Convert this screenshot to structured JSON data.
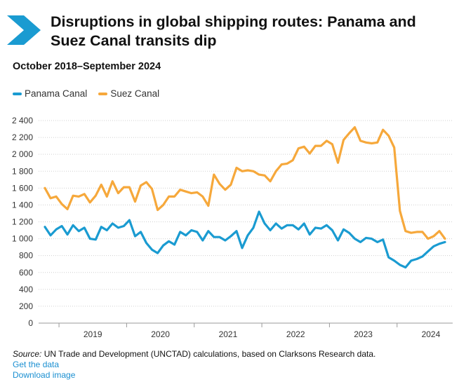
{
  "header": {
    "title": "Disruptions in global shipping routes: Panama and Suez Canal transits dip",
    "subtitle": "October 2018–September 2024"
  },
  "legend": {
    "panama": "Panama Canal",
    "suez": "Suez Canal"
  },
  "colors": {
    "panama": "#1a9bd1",
    "suez": "#f6a83b",
    "logo": "#1a9bd1",
    "link": "#1a8fd1"
  },
  "chart_data": {
    "type": "line",
    "title": "Disruptions in global shipping routes: Panama and Suez Canal transits dip",
    "subtitle": "October 2018–September 2024",
    "xlabel": "",
    "ylabel": "",
    "ylim": [
      0,
      2400
    ],
    "yticks": [
      0,
      200,
      400,
      600,
      800,
      1000,
      1200,
      1400,
      1600,
      1800,
      2000,
      2200,
      2400
    ],
    "ytick_labels": [
      "0",
      "200",
      "400",
      "600",
      "800",
      "1 000",
      "1 200",
      "1 400",
      "1 600",
      "1 800",
      "2 000",
      "2 200",
      "2 400"
    ],
    "xtick_labels": [
      "2019",
      "2020",
      "2021",
      "2022",
      "2023",
      "2024"
    ],
    "x_start": "October 2018",
    "x_end": "September 2024",
    "grid": true,
    "legend_position": "top-left",
    "series": [
      {
        "name": "Panama Canal",
        "color": "#1a9bd1",
        "values": [
          1140,
          1040,
          1110,
          1150,
          1050,
          1160,
          1090,
          1130,
          1000,
          990,
          1140,
          1100,
          1180,
          1130,
          1150,
          1220,
          1030,
          1080,
          950,
          870,
          830,
          920,
          970,
          930,
          1080,
          1040,
          1100,
          1080,
          980,
          1090,
          1020,
          1020,
          980,
          1030,
          1090,
          890,
          1040,
          1130,
          1320,
          1180,
          1100,
          1180,
          1120,
          1160,
          1160,
          1110,
          1180,
          1050,
          1130,
          1120,
          1160,
          1100,
          980,
          1110,
          1070,
          1000,
          960,
          1010,
          1000,
          960,
          990,
          780,
          740,
          690,
          660,
          740,
          760,
          790,
          850,
          910,
          940,
          960
        ]
      },
      {
        "name": "Suez Canal",
        "color": "#f6a83b",
        "values": [
          1600,
          1480,
          1500,
          1410,
          1350,
          1510,
          1500,
          1530,
          1430,
          1510,
          1640,
          1500,
          1680,
          1540,
          1610,
          1610,
          1440,
          1630,
          1670,
          1590,
          1340,
          1400,
          1500,
          1500,
          1580,
          1560,
          1540,
          1550,
          1500,
          1390,
          1760,
          1650,
          1580,
          1640,
          1840,
          1800,
          1810,
          1800,
          1760,
          1750,
          1680,
          1800,
          1880,
          1890,
          1930,
          2070,
          2090,
          2010,
          2100,
          2100,
          2160,
          2120,
          1900,
          2170,
          2250,
          2320,
          2160,
          2140,
          2130,
          2140,
          2290,
          2220,
          2080,
          1330,
          1090,
          1070,
          1080,
          1080,
          1000,
          1030,
          1090,
          1000
        ]
      }
    ]
  },
  "footer": {
    "source_label": "Source:",
    "source_text": " UN Trade and Development (UNCTAD) calculations, based on Clarksons Research data.",
    "get_data": "Get the data",
    "download": "Download image"
  }
}
